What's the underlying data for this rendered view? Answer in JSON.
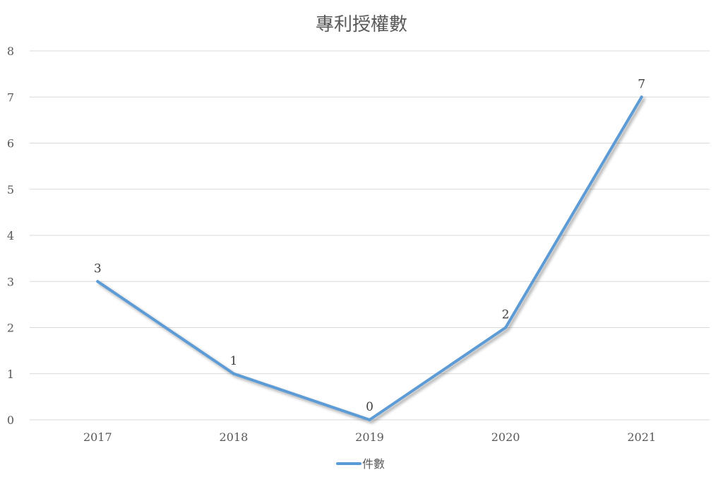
{
  "chart_data": {
    "type": "line",
    "title": "專利授權數",
    "xlabel": "",
    "ylabel": "",
    "categories": [
      "2017",
      "2018",
      "2019",
      "2020",
      "2021"
    ],
    "series": [
      {
        "name": "件數",
        "values": [
          3,
          1,
          0,
          2,
          7
        ],
        "color": "#5b9bd5"
      }
    ],
    "ylim": [
      0,
      8
    ],
    "yticks": [
      "0",
      "1",
      "2",
      "3",
      "4",
      "5",
      "6",
      "7",
      "8"
    ],
    "data_labels": [
      "3",
      "1",
      "0",
      "2",
      "7"
    ],
    "grid": true,
    "legend": "bottom",
    "gridline_color": "#d9d9d9",
    "text_color": "#595959"
  }
}
